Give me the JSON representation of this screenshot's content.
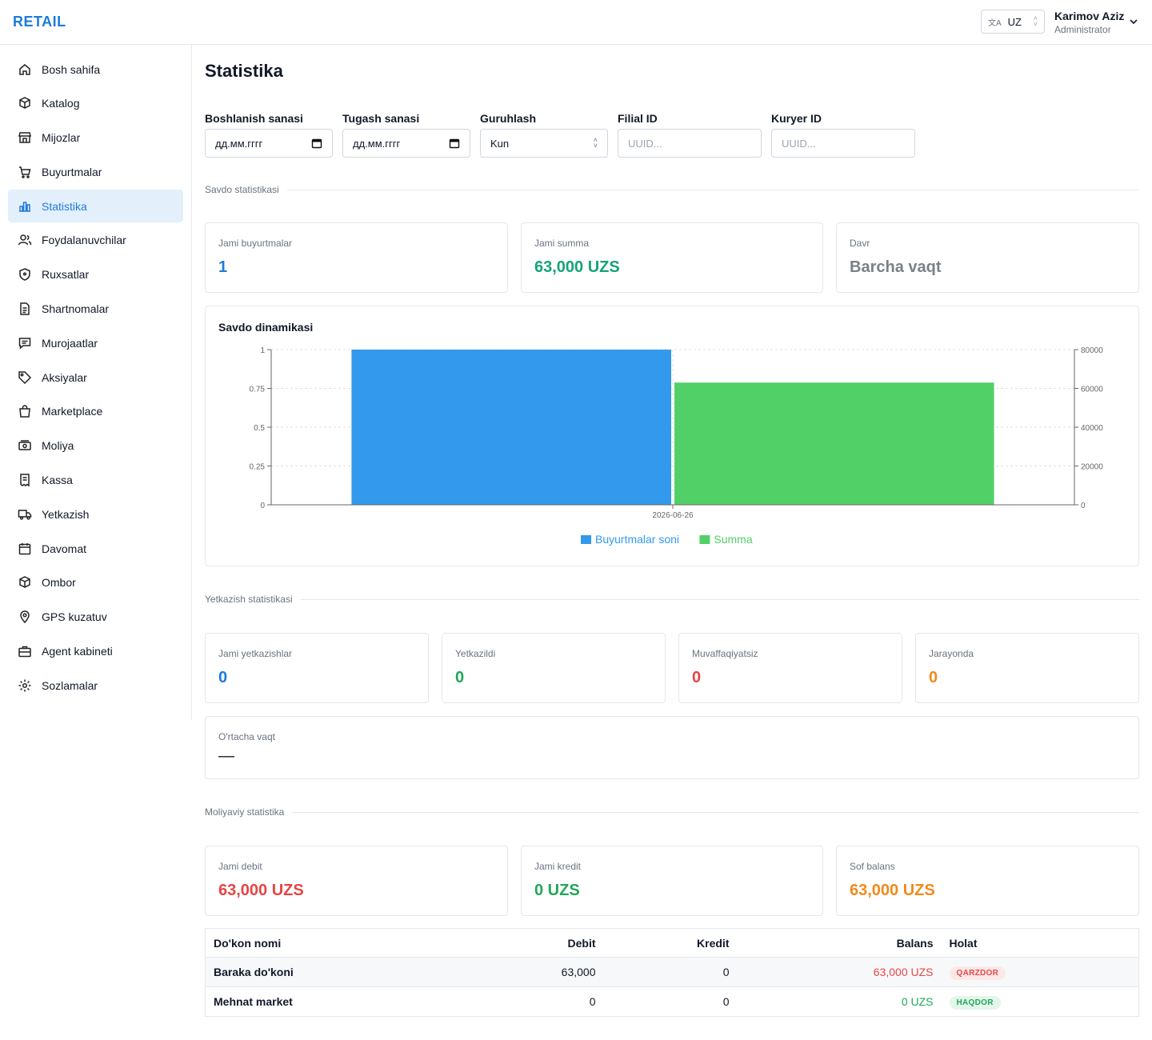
{
  "app": {
    "logo": "RETAIL"
  },
  "header": {
    "lang": "UZ",
    "user_name": "Karimov Aziz",
    "user_role": "Administrator"
  },
  "sidebar": {
    "items": [
      {
        "label": "Bosh sahifa",
        "icon": "home-icon"
      },
      {
        "label": "Katalog",
        "icon": "box-icon"
      },
      {
        "label": "Mijozlar",
        "icon": "store-icon"
      },
      {
        "label": "Buyurtmalar",
        "icon": "cart-icon"
      },
      {
        "label": "Statistika",
        "icon": "bar-chart-icon",
        "active": true
      },
      {
        "label": "Foydalanuvchilar",
        "icon": "users-icon"
      },
      {
        "label": "Ruxsatlar",
        "icon": "shield-icon"
      },
      {
        "label": "Shartnomalar",
        "icon": "document-icon"
      },
      {
        "label": "Murojaatlar",
        "icon": "message-icon"
      },
      {
        "label": "Aksiyalar",
        "icon": "tag-icon"
      },
      {
        "label": "Marketplace",
        "icon": "shopping-bag-icon"
      },
      {
        "label": "Moliya",
        "icon": "money-icon"
      },
      {
        "label": "Kassa",
        "icon": "receipt-icon"
      },
      {
        "label": "Yetkazish",
        "icon": "truck-icon"
      },
      {
        "label": "Davomat",
        "icon": "calendar-icon"
      },
      {
        "label": "Ombor",
        "icon": "package-icon"
      },
      {
        "label": "GPS kuzatuv",
        "icon": "map-pin-icon"
      },
      {
        "label": "Agent kabineti",
        "icon": "briefcase-icon"
      },
      {
        "label": "Sozlamalar",
        "icon": "gear-icon"
      }
    ]
  },
  "page": {
    "title": "Statistika"
  },
  "filters": {
    "start_label": "Boshlanish sanasi",
    "start_value": "дд.мм.гггг",
    "end_label": "Tugash sanasi",
    "end_value": "дд.мм.гггг",
    "group_label": "Guruhlash",
    "group_value": "Kun",
    "branch_label": "Filial ID",
    "branch_placeholder": "UUID...",
    "courier_label": "Kuryer ID",
    "courier_placeholder": "UUID..."
  },
  "sales": {
    "section": "Savdo statistikasi",
    "cards": [
      {
        "label": "Jami buyurtmalar",
        "value": "1"
      },
      {
        "label": "Jami summa",
        "value": "63,000 UZS"
      },
      {
        "label": "Davr",
        "value": "Barcha vaqt"
      }
    ]
  },
  "chart_data": {
    "type": "bar",
    "title": "Savdo dinamikasi",
    "categories": [
      "2026-06-26"
    ],
    "series": [
      {
        "name": "Buyurtmalar soni",
        "values": [
          1
        ],
        "axis": "left",
        "color": "#3399ec"
      },
      {
        "name": "Summa",
        "values": [
          63000
        ],
        "axis": "right",
        "color": "#52d068"
      }
    ],
    "y_left": {
      "ylim": [
        0,
        1
      ],
      "ticks": [
        "0",
        "0.25",
        "0.5",
        "0.75",
        "1"
      ]
    },
    "y_right": {
      "ylim": [
        0,
        80000
      ],
      "ticks": [
        "0",
        "20000",
        "40000",
        "60000",
        "80000"
      ]
    },
    "grid": true,
    "legend": "bottom"
  },
  "delivery": {
    "section": "Yetkazish statistikasi",
    "cards": [
      {
        "label": "Jami yetkazishlar",
        "value": "0"
      },
      {
        "label": "Yetkazildi",
        "value": "0"
      },
      {
        "label": "Muvaffaqiyatsiz",
        "value": "0"
      },
      {
        "label": "Jarayonda",
        "value": "0"
      }
    ],
    "avg_label": "O'rtacha vaqt",
    "avg_value": "—"
  },
  "finance": {
    "section": "Moliyaviy statistika",
    "cards": [
      {
        "label": "Jami debit",
        "value": "63,000 UZS"
      },
      {
        "label": "Jami kredit",
        "value": "0 UZS"
      },
      {
        "label": "Sof balans",
        "value": "63,000 UZS"
      }
    ],
    "table": {
      "headers": [
        "Do'kon nomi",
        "Debit",
        "Kredit",
        "Balans",
        "Holat"
      ],
      "rows": [
        {
          "name": "Baraka do'koni",
          "debit": "63,000",
          "credit": "0",
          "balance": "63,000 UZS",
          "status": "QARZDOR"
        },
        {
          "name": "Mehnat market",
          "debit": "0",
          "credit": "0",
          "balance": "0 UZS",
          "status": "HAQDOR"
        }
      ]
    }
  },
  "colors": {
    "accent": "#1e7bd9",
    "green": "#22a65a",
    "red": "#e64545",
    "orange": "#f08a1c"
  }
}
